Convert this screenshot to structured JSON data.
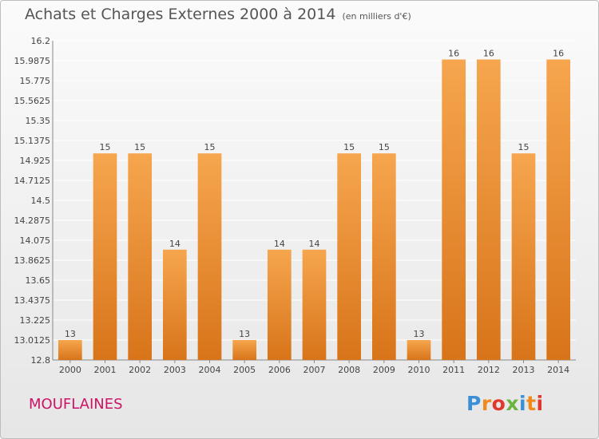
{
  "title": "Achats et Charges Externes 2000 à 2014",
  "unit": "(en milliers d'€)",
  "town": "MOUFLAINES",
  "logo": {
    "text": "Proxiti",
    "colors": [
      "#3a8fd6",
      "#f08a1c",
      "#e0382c",
      "#6cb33f",
      "#3a8fd6",
      "#f08a1c",
      "#e0382c"
    ]
  },
  "colors": {
    "bar_top": "#f6a64e",
    "bar_bottom": "#d8741a",
    "grid": "#ffffff",
    "text": "#444444",
    "town": "#cc1466"
  },
  "chart_data": {
    "type": "bar",
    "categories": [
      "2000",
      "2001",
      "2002",
      "2003",
      "2004",
      "2005",
      "2006",
      "2007",
      "2008",
      "2009",
      "2010",
      "2011",
      "2012",
      "2013",
      "2014"
    ],
    "values": [
      13,
      15,
      15,
      14,
      15,
      13,
      14,
      14,
      15,
      15,
      13,
      16,
      16,
      15,
      16
    ],
    "bar_base_values": [
      13.0125,
      15,
      15,
      13.975,
      15,
      13.0125,
      13.975,
      13.975,
      15,
      15,
      13.0125,
      16,
      16,
      15,
      16
    ],
    "data_labels": [
      "13",
      "15",
      "15",
      "14",
      "15",
      "13",
      "14",
      "14",
      "15",
      "15",
      "13",
      "16",
      "16",
      "15",
      "16"
    ],
    "yticks": [
      12.8,
      13.0125,
      13.225,
      13.4375,
      13.65,
      13.8625,
      14.075,
      14.2875,
      14.5,
      14.7125,
      14.925,
      15.1375,
      15.35,
      15.5625,
      15.775,
      15.9875,
      16.2
    ],
    "ytick_labels": [
      "12.8",
      "13.0125",
      "13.225",
      "13.4375",
      "13.65",
      "13.8625",
      "14.075",
      "14.2875",
      "14.5",
      "14.7125",
      "14.925",
      "15.1375",
      "15.35",
      "15.5625",
      "15.775",
      "15.9875",
      "16.2"
    ],
    "ylim": [
      12.8,
      16.2
    ],
    "grid": true,
    "title": "Achats et Charges Externes 2000 à 2014",
    "xlabel": "",
    "ylabel": ""
  }
}
